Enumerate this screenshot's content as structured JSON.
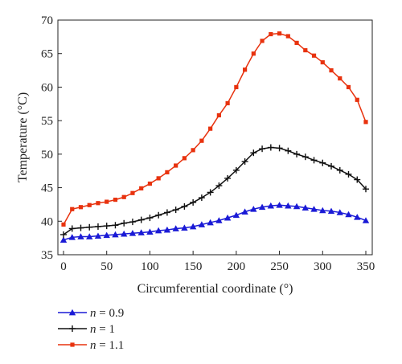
{
  "chart_data": {
    "type": "line",
    "xlabel": "Circumferential coordinate (°)",
    "ylabel": "Temperature (°C)",
    "xlim": [
      0,
      350
    ],
    "ylim": [
      35,
      70
    ],
    "xticks": [
      0,
      50,
      100,
      150,
      200,
      250,
      300,
      350
    ],
    "yticks": [
      35,
      40,
      45,
      50,
      55,
      60,
      65,
      70
    ],
    "grid": false,
    "legend_position": "bottom-left, below plot",
    "series": [
      {
        "name": "n = 0.9",
        "legend_symbol": "n",
        "legend_value": "= 0.9",
        "color": "#1a1ad6",
        "marker": "triangle",
        "x": [
          0,
          10,
          20,
          30,
          40,
          50,
          60,
          70,
          80,
          90,
          100,
          110,
          120,
          130,
          140,
          150,
          160,
          170,
          180,
          190,
          200,
          210,
          220,
          230,
          240,
          250,
          260,
          270,
          280,
          290,
          300,
          310,
          320,
          330,
          340,
          350
        ],
        "y": [
          37.2,
          37.6,
          37.7,
          37.7,
          37.8,
          37.9,
          38.0,
          38.1,
          38.2,
          38.3,
          38.4,
          38.6,
          38.7,
          38.9,
          39.0,
          39.2,
          39.5,
          39.8,
          40.1,
          40.5,
          40.9,
          41.4,
          41.8,
          42.1,
          42.3,
          42.4,
          42.3,
          42.2,
          42.0,
          41.8,
          41.6,
          41.5,
          41.3,
          41.0,
          40.6,
          40.1
        ]
      },
      {
        "name": "n = 1",
        "legend_symbol": "n",
        "legend_value": "= 1",
        "color": "#111111",
        "marker": "plus",
        "x": [
          0,
          10,
          20,
          30,
          40,
          50,
          60,
          70,
          80,
          90,
          100,
          110,
          120,
          130,
          140,
          150,
          160,
          170,
          180,
          190,
          200,
          210,
          220,
          230,
          240,
          250,
          260,
          270,
          280,
          290,
          300,
          310,
          320,
          330,
          340,
          350
        ],
        "y": [
          38.0,
          38.9,
          39.0,
          39.1,
          39.2,
          39.3,
          39.4,
          39.7,
          39.9,
          40.2,
          40.5,
          40.9,
          41.3,
          41.7,
          42.2,
          42.8,
          43.5,
          44.3,
          45.3,
          46.4,
          47.6,
          48.9,
          50.2,
          50.8,
          51.0,
          50.9,
          50.5,
          50.0,
          49.6,
          49.1,
          48.7,
          48.2,
          47.6,
          47.0,
          46.2,
          44.8
        ]
      },
      {
        "name": "n = 1.1",
        "legend_symbol": "n",
        "legend_value": "= 1.1",
        "color": "#e8320e",
        "marker": "square",
        "x": [
          0,
          10,
          20,
          30,
          40,
          50,
          60,
          70,
          80,
          90,
          100,
          110,
          120,
          130,
          140,
          150,
          160,
          170,
          180,
          190,
          200,
          210,
          220,
          230,
          240,
          250,
          260,
          270,
          280,
          290,
          300,
          310,
          320,
          330,
          340,
          350
        ],
        "y": [
          39.5,
          41.8,
          42.1,
          42.4,
          42.7,
          42.9,
          43.2,
          43.6,
          44.2,
          44.9,
          45.6,
          46.4,
          47.3,
          48.3,
          49.4,
          50.6,
          52.0,
          53.8,
          55.8,
          57.6,
          60.0,
          62.6,
          65.0,
          66.9,
          67.9,
          68.0,
          67.6,
          66.6,
          65.5,
          64.7,
          63.7,
          62.5,
          61.3,
          60.0,
          58.1,
          54.8
        ]
      }
    ]
  }
}
